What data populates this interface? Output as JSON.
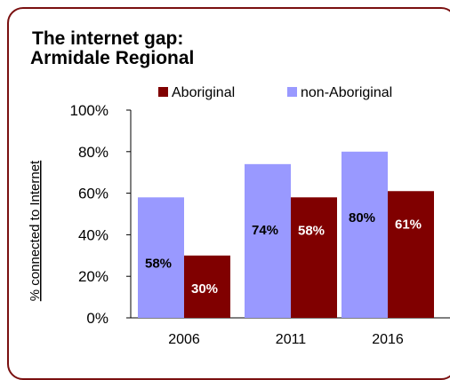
{
  "chart_data": {
    "type": "bar",
    "title_line1": "The internet gap:",
    "title_line2": "Armidale Regional",
    "ylabel": "% connected to Internet",
    "xlabel": "",
    "categories": [
      "2006",
      "2011",
      "2016"
    ],
    "ylim": [
      0,
      100
    ],
    "yticks": [
      "0%",
      "20%",
      "40%",
      "60%",
      "80%",
      "100%"
    ],
    "legend_position": "top",
    "series": [
      {
        "name": "non-Aboriginal",
        "color": "#9999ff",
        "values": [
          58,
          74,
          80
        ],
        "labels": [
          "58%",
          "74%",
          "80%"
        ]
      },
      {
        "name": "Aboriginal",
        "color": "#800000",
        "values": [
          30,
          58,
          61
        ],
        "labels": [
          "30%",
          "58%",
          "61%"
        ]
      }
    ],
    "legend_order": [
      1,
      0
    ]
  }
}
